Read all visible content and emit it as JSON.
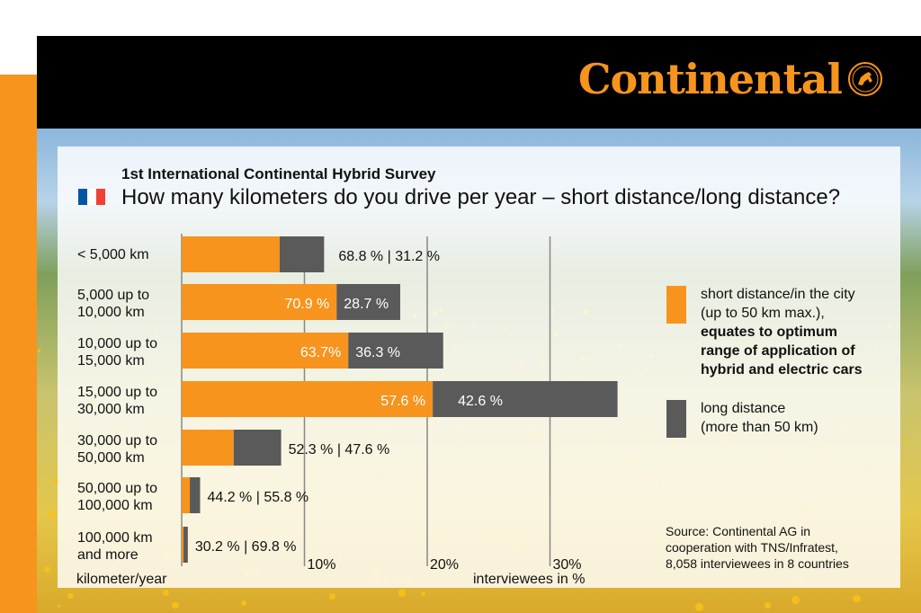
{
  "brand": {
    "name": "Continental"
  },
  "survey_title": "1st International Continental Hybrid Survey",
  "question": "How many kilometers do you drive per year – short distance/long distance?",
  "flag": {
    "country": "France",
    "colors": [
      "#0055a4",
      "#ffffff",
      "#ef4135"
    ]
  },
  "colors": {
    "short": "#f7941d",
    "long": "#5a5a5a",
    "header": "#000000"
  },
  "legend": {
    "short_line1": "short distance/in the city",
    "short_line2": "(up to 50 km max.),",
    "short_bold1": "equates to optimum",
    "short_bold2": "range of application of",
    "short_bold3": "hybrid and electric cars",
    "long_line1": "long distance",
    "long_line2": "(more than 50 km)"
  },
  "source": {
    "line1": "Source: Continental AG in",
    "line2": "cooperation with TNS/Infratest,",
    "line3": "8,058 interviewees in 8 countries"
  },
  "xlabel_left": "kilometer/year",
  "xlabel_right": "interviewees in %",
  "chart_data": {
    "type": "bar",
    "orientation": "horizontal",
    "stacked": true,
    "xlim": [
      0,
      35
    ],
    "xticks": [
      "10%",
      "20%",
      "30%"
    ],
    "categories": [
      [
        "< 5,000 km"
      ],
      [
        "5,000 up to",
        "10,000 km"
      ],
      [
        "10,000 up to",
        "15,000 km"
      ],
      [
        "15,000 up to",
        "30,000 km"
      ],
      [
        "30,000 up to",
        "50,000 km"
      ],
      [
        "50,000 up to",
        "100,000 km"
      ],
      [
        "100,000 km",
        "and more"
      ]
    ],
    "totals": [
      11.6,
      17.8,
      21.3,
      35.5,
      8.1,
      1.5,
      0.5
    ],
    "short_pct": [
      68.8,
      70.9,
      63.7,
      57.6,
      52.3,
      44.2,
      30.2
    ],
    "long_pct": [
      31.2,
      28.7,
      36.3,
      42.6,
      47.6,
      55.8,
      69.8
    ],
    "short_labels": [
      "68.8 %",
      "70.9 %",
      "63.7%",
      "57.6 %",
      "52.3 %",
      "44.2 %",
      "30.2 %"
    ],
    "long_labels": [
      "31.2 %",
      "28.7 %",
      "36.3 %",
      "42.6 %",
      "47.6 %",
      "55.8 %",
      "69.8 %"
    ]
  }
}
